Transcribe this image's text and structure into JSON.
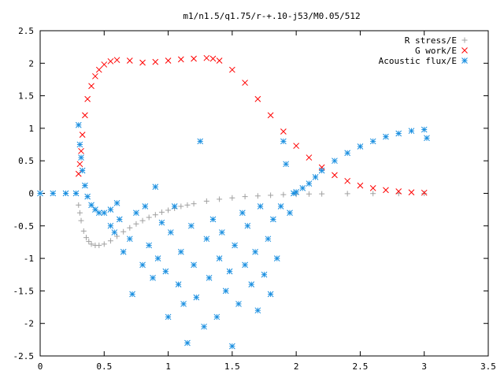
{
  "chart_data": {
    "type": "scatter",
    "title": "m1/n1.5/q1.75/r-+.10-j53/M0.05/512",
    "xlabel": "",
    "ylabel": "",
    "xlim": [
      0,
      3.5
    ],
    "ylim": [
      -2.5,
      2.5
    ],
    "xticks": [
      "0",
      "0.5",
      "1",
      "1.5",
      "2",
      "2.5",
      "3",
      "3.5"
    ],
    "yticks": [
      "2.5",
      "2",
      "1.5",
      "1",
      "0.5",
      "0",
      "-0.5",
      "-1",
      "-1.5",
      "-2",
      "-2.5"
    ],
    "grid": false,
    "legend_position": "top-right",
    "series": [
      {
        "name": "R stress/E",
        "marker": "plus",
        "color": "#a0a0a0",
        "x": [
          0.3,
          0.31,
          0.32,
          0.34,
          0.36,
          0.38,
          0.4,
          0.43,
          0.46,
          0.5,
          0.55,
          0.6,
          0.65,
          0.7,
          0.75,
          0.8,
          0.85,
          0.9,
          0.95,
          1.0,
          1.05,
          1.1,
          1.15,
          1.2,
          1.3,
          1.4,
          1.5,
          1.6,
          1.7,
          1.8,
          1.9,
          2.0,
          2.1,
          2.2,
          2.4,
          2.6,
          2.8,
          3.0
        ],
        "y": [
          -0.18,
          -0.3,
          -0.42,
          -0.58,
          -0.68,
          -0.74,
          -0.78,
          -0.8,
          -0.8,
          -0.78,
          -0.73,
          -0.66,
          -0.59,
          -0.53,
          -0.47,
          -0.42,
          -0.37,
          -0.33,
          -0.29,
          -0.26,
          -0.23,
          -0.2,
          -0.18,
          -0.16,
          -0.12,
          -0.09,
          -0.07,
          -0.05,
          -0.04,
          -0.03,
          -0.02,
          -0.015,
          -0.01,
          -0.008,
          -0.005,
          -0.003,
          -0.002,
          -0.001
        ]
      },
      {
        "name": "G work/E",
        "marker": "cross",
        "color": "#ff0000",
        "x": [
          0.3,
          0.31,
          0.32,
          0.33,
          0.35,
          0.37,
          0.4,
          0.43,
          0.46,
          0.5,
          0.55,
          0.6,
          0.7,
          0.8,
          0.9,
          1.0,
          1.1,
          1.2,
          1.3,
          1.35,
          1.4,
          1.5,
          1.6,
          1.7,
          1.8,
          1.9,
          2.0,
          2.1,
          2.2,
          2.3,
          2.4,
          2.5,
          2.6,
          2.7,
          2.8,
          2.9,
          3.0
        ],
        "y": [
          0.3,
          0.45,
          0.65,
          0.9,
          1.2,
          1.45,
          1.65,
          1.8,
          1.9,
          1.98,
          2.03,
          2.05,
          2.04,
          2.01,
          2.02,
          2.04,
          2.06,
          2.07,
          2.08,
          2.07,
          2.04,
          1.9,
          1.7,
          1.45,
          1.2,
          0.95,
          0.73,
          0.55,
          0.4,
          0.28,
          0.19,
          0.12,
          0.08,
          0.05,
          0.03,
          0.015,
          0.01
        ]
      },
      {
        "name": "Acoustic flux/E",
        "marker": "star",
        "color": "#1a8fe0",
        "x": [
          0.0,
          0.1,
          0.2,
          0.28,
          0.3,
          0.31,
          0.32,
          0.33,
          0.35,
          0.37,
          0.4,
          0.43,
          0.46,
          0.5,
          0.55,
          0.6,
          1.98,
          2.0,
          2.05,
          2.1,
          2.15,
          2.2,
          2.3,
          2.4,
          2.5,
          2.6,
          2.7,
          2.8,
          2.9,
          3.0,
          3.02,
          0.55,
          0.58,
          0.62,
          0.65,
          0.7,
          0.72,
          0.75,
          0.8,
          0.82,
          0.85,
          0.88,
          0.9,
          0.92,
          0.95,
          0.98,
          1.0,
          1.02,
          1.05,
          1.08,
          1.1,
          1.12,
          1.15,
          1.18,
          1.2,
          1.22,
          1.25,
          1.28,
          1.3,
          1.32,
          1.35,
          1.38,
          1.4,
          1.42,
          1.45,
          1.48,
          1.5,
          1.52,
          1.55,
          1.58,
          1.6,
          1.62,
          1.65,
          1.68,
          1.7,
          1.72,
          1.75,
          1.78,
          1.8,
          1.82,
          1.85,
          1.88,
          1.9,
          1.92,
          1.95
        ],
        "y": [
          0.0,
          0.0,
          0.0,
          0.0,
          1.05,
          0.75,
          0.55,
          0.35,
          0.12,
          -0.05,
          -0.18,
          -0.25,
          -0.3,
          -0.3,
          -0.25,
          -0.15,
          0.0,
          0.02,
          0.08,
          0.15,
          0.25,
          0.35,
          0.5,
          0.62,
          0.72,
          0.8,
          0.87,
          0.92,
          0.96,
          0.98,
          0.85,
          -0.5,
          -0.6,
          -0.4,
          -0.9,
          -0.7,
          -1.55,
          -0.3,
          -1.1,
          -0.2,
          -0.8,
          -1.3,
          0.1,
          -1.0,
          -0.45,
          -1.2,
          -1.9,
          -0.6,
          -0.2,
          -1.4,
          -0.9,
          -1.7,
          -2.3,
          -0.5,
          -1.1,
          -1.6,
          0.8,
          -2.05,
          -0.7,
          -1.3,
          -0.4,
          -1.9,
          -1.0,
          -0.6,
          -1.5,
          -1.2,
          -2.35,
          -0.8,
          -1.7,
          -0.3,
          -1.1,
          -0.5,
          -1.4,
          -0.9,
          -1.8,
          -0.2,
          -1.25,
          -0.7,
          -1.55,
          -0.4,
          -1.0,
          -0.2,
          0.8,
          0.45,
          -0.3
        ]
      }
    ]
  }
}
